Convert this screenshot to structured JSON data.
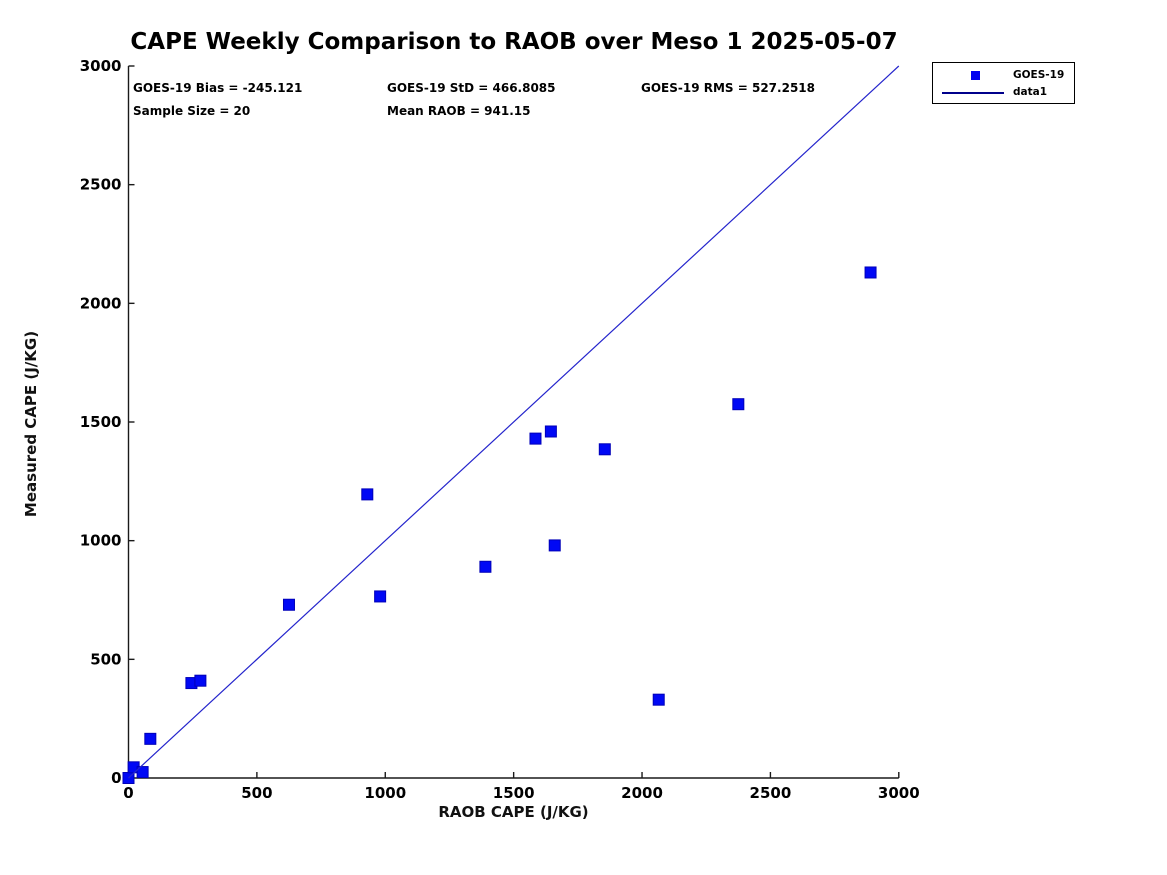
{
  "title": "CAPE Weekly Comparison to RAOB over Meso 1 2025-05-07",
  "stats": {
    "bias": "GOES-19 Bias = -245.121",
    "std": "GOES-19 StD = 466.8085",
    "rms": "GOES-19 RMS = 527.2518",
    "sample_size": "Sample Size = 20",
    "mean_raob": "Mean RAOB = 941.15"
  },
  "legend": {
    "entries": [
      {
        "label": "GOES-19",
        "swatch": "square-marker",
        "color": "#0000f0"
      },
      {
        "label": "data1",
        "swatch": "line",
        "color": "#00008b"
      }
    ]
  },
  "colors": {
    "marker_fill": "#0008f5",
    "marker_edge": "#0000b8",
    "line": "#2424cc",
    "axis": "#1a1a1a",
    "text": "#000000"
  },
  "chart_data": {
    "type": "scatter",
    "title": "CAPE Weekly Comparison to RAOB over Meso 1 2025-05-07",
    "xlabel": "RAOB CAPE (J/KG)",
    "ylabel": "Measured CAPE (J/KG)",
    "xlim": [
      0,
      3000
    ],
    "ylim": [
      0,
      3000
    ],
    "xticks": [
      0,
      500,
      1000,
      1500,
      2000,
      2500,
      3000
    ],
    "yticks": [
      0,
      500,
      1000,
      1500,
      2000,
      2500,
      3000
    ],
    "grid": false,
    "legend_position": "outside-top-right",
    "annotations": [
      "GOES-19 Bias = -245.121",
      "GOES-19 StD = 466.8085",
      "GOES-19 RMS = 527.2518",
      "Sample Size = 20",
      "Mean RAOB = 941.15"
    ],
    "series": [
      {
        "name": "GOES-19",
        "type": "scatter",
        "marker": "square",
        "points": [
          [
            0,
            0
          ],
          [
            20,
            45
          ],
          [
            55,
            25
          ],
          [
            85,
            165
          ],
          [
            245,
            400
          ],
          [
            280,
            410
          ],
          [
            625,
            730
          ],
          [
            930,
            1195
          ],
          [
            980,
            765
          ],
          [
            1390,
            890
          ],
          [
            1585,
            1430
          ],
          [
            1645,
            1460
          ],
          [
            1660,
            980
          ],
          [
            1855,
            1385
          ],
          [
            2065,
            330
          ],
          [
            2375,
            1575
          ],
          [
            2890,
            2130
          ]
        ]
      },
      {
        "name": "data1",
        "type": "line",
        "points": [
          [
            0,
            0
          ],
          [
            3000,
            3000
          ]
        ]
      }
    ]
  }
}
